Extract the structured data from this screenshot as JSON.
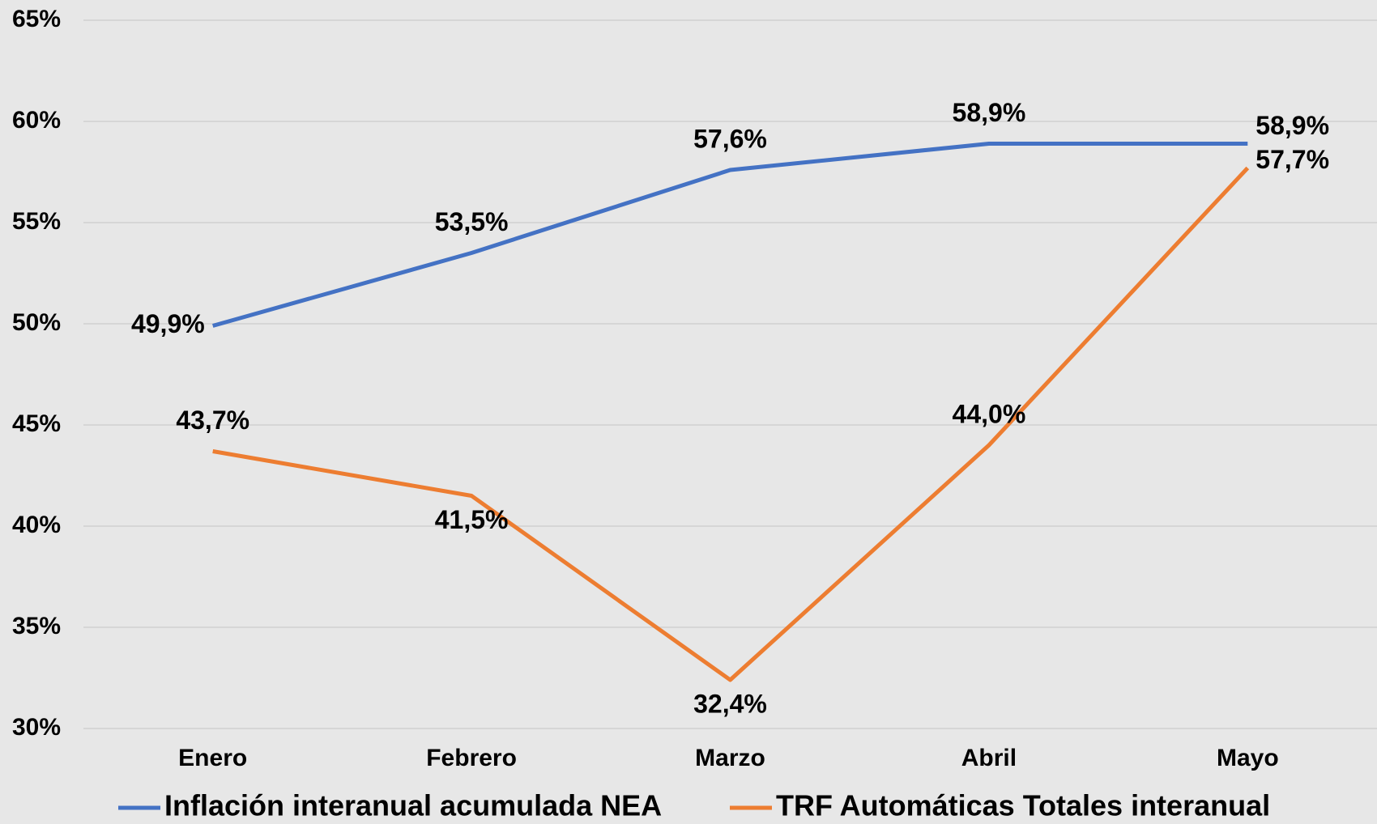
{
  "chart_data": {
    "type": "line",
    "categories": [
      "Enero",
      "Febrero",
      "Marzo",
      "Abril",
      "Mayo"
    ],
    "series": [
      {
        "name": "Inflación interanual acumulada NEA",
        "color": "#4472c4",
        "values": [
          49.9,
          53.5,
          57.6,
          58.9,
          58.9
        ],
        "value_labels": [
          "49,9%",
          "53,5%",
          "57,6%",
          "58,9%",
          "58,9%"
        ]
      },
      {
        "name": "TRF Automáticas Totales interanual",
        "color": "#ed7d31",
        "values": [
          43.7,
          41.5,
          32.4,
          44.0,
          57.7
        ],
        "value_labels": [
          "43,7%",
          "41,5%",
          "32,4%",
          "44,0%",
          "57,7%"
        ]
      }
    ],
    "ylim": [
      30,
      65
    ],
    "yticks": [
      {
        "value": 30,
        "label": "30%"
      },
      {
        "value": 35,
        "label": "35%"
      },
      {
        "value": 40,
        "label": "40%"
      },
      {
        "value": 45,
        "label": "45%"
      },
      {
        "value": 50,
        "label": "50%"
      },
      {
        "value": 55,
        "label": "55%"
      },
      {
        "value": 60,
        "label": "60%"
      },
      {
        "value": 65,
        "label": "65%"
      }
    ],
    "grid": true,
    "legend": "bottom"
  }
}
